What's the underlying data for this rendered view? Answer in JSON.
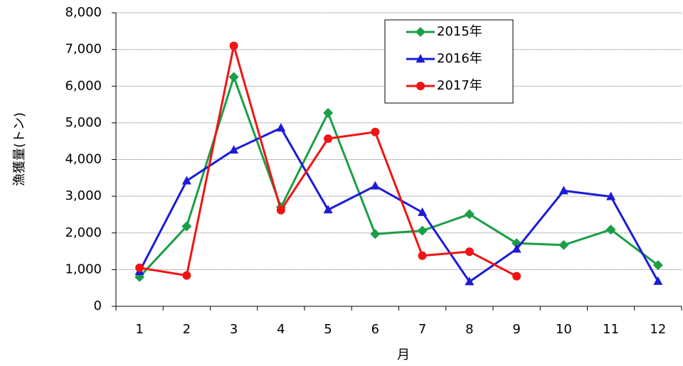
{
  "chart_data": {
    "type": "line",
    "x_label": "月",
    "y_label": "漁獲量(トン)",
    "categories": [
      "1",
      "2",
      "3",
      "4",
      "5",
      "6",
      "7",
      "8",
      "9",
      "10",
      "11",
      "12"
    ],
    "series": [
      {
        "name": "2015年",
        "color": "#1a9e46",
        "marker": "diamond",
        "values": [
          800,
          2180,
          6250,
          2700,
          5270,
          1970,
          2060,
          2510,
          1720,
          1670,
          2090,
          1120
        ]
      },
      {
        "name": "2016年",
        "color": "#1c1cd8",
        "marker": "triangle",
        "values": [
          950,
          3420,
          4260,
          4860,
          2630,
          3280,
          2560,
          670,
          1560,
          3150,
          2990,
          680
        ]
      },
      {
        "name": "2017年",
        "color": "#f01414",
        "marker": "circle",
        "values": [
          1050,
          840,
          7100,
          2620,
          4570,
          4750,
          1380,
          1490,
          820,
          null,
          null,
          null
        ]
      }
    ],
    "ylim": [
      0,
      8000
    ],
    "yticks": [
      0,
      {
        "value": 1000,
        "label": "1,000"
      },
      {
        "value": 2000,
        "label": "2,000"
      },
      {
        "value": 3000,
        "label": "3,000"
      },
      {
        "value": 4000,
        "label": "4,000"
      },
      {
        "value": 5000,
        "label": "5,000"
      },
      {
        "value": 6000,
        "label": "6,000"
      },
      {
        "value": 7000,
        "label": "7,000"
      },
      {
        "value": 8000,
        "label": "8,000"
      }
    ],
    "grid": true,
    "legend": "top-center"
  }
}
